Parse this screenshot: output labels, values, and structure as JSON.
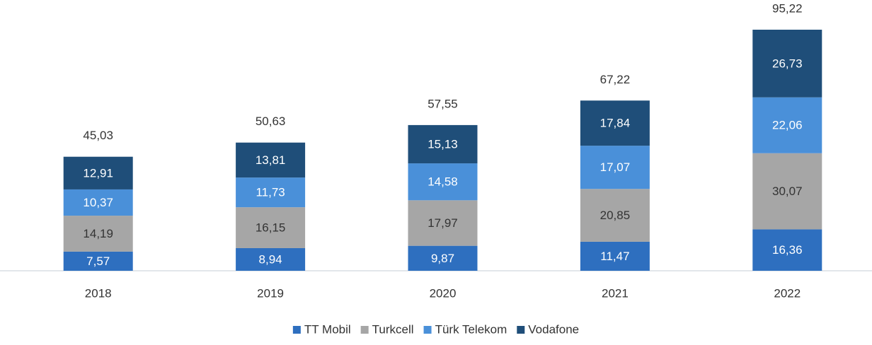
{
  "chart_data": {
    "type": "stacked_bar",
    "categories": [
      "2018",
      "2019",
      "2020",
      "2021",
      "2022"
    ],
    "series": [
      {
        "name": "TT Mobil",
        "color": "#2e6fbf",
        "values": [
          7.57,
          8.94,
          9.87,
          11.47,
          16.36
        ],
        "value_labels": [
          "7,57",
          "8,94",
          "9,87",
          "11,47",
          "16,36"
        ]
      },
      {
        "name": "Turkcell",
        "color": "#a6a6a6",
        "values": [
          14.19,
          16.15,
          17.97,
          20.85,
          30.07
        ],
        "value_labels": [
          "14,19",
          "16,15",
          "17,97",
          "20,85",
          "30,07"
        ]
      },
      {
        "name": "Türk Telekom",
        "color": "#4a90d9",
        "values": [
          10.37,
          11.73,
          14.58,
          17.07,
          22.06
        ],
        "value_labels": [
          "10,37",
          "11,73",
          "14,58",
          "17,07",
          "22,06"
        ]
      },
      {
        "name": "Vodafone",
        "color": "#1f4e79",
        "values": [
          12.91,
          13.81,
          15.13,
          17.84,
          26.73
        ],
        "value_labels": [
          "12,91",
          "13,81",
          "15,13",
          "17,84",
          "26,73"
        ]
      }
    ],
    "totals": [
      45.03,
      50.63,
      57.55,
      67.22,
      95.22
    ],
    "total_labels": [
      "45,03",
      "50,63",
      "57,55",
      "67,22",
      "95,22"
    ],
    "legend": "bottom"
  }
}
